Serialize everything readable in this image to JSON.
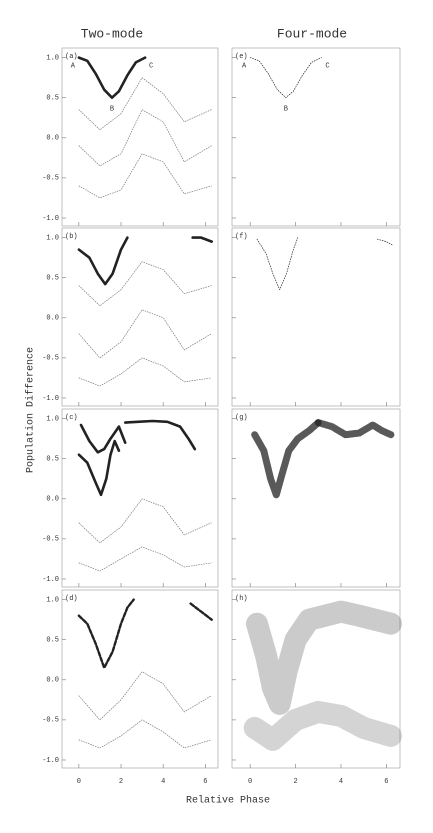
{
  "figure": {
    "column_titles": [
      "Two-mode",
      "Four-mode"
    ],
    "xlabel": "Relative Phase",
    "ylabel": "Population Difference"
  },
  "chart_data": [
    {
      "type": "line",
      "panel_label": "(a)",
      "annotations": [
        "A",
        "B",
        "C"
      ],
      "xlim": [
        -0.8,
        6.6
      ],
      "ylim": [
        -1.1,
        1.12
      ],
      "xticks": [
        0,
        2,
        4,
        6
      ],
      "yticks": [
        {
          "value": -1,
          "label": "-1.0"
        },
        -0.5,
        {
          "value": 0,
          "label": "0.0"
        },
        0.5,
        {
          "value": 1,
          "label": "1.0"
        }
      ],
      "series": [
        {
          "style": "bold",
          "color": "#222222",
          "x": [
            0,
            0.4,
            0.8,
            1.2,
            1.57,
            1.9,
            2.3,
            2.7,
            3.14
          ],
          "values": [
            1.0,
            0.96,
            0.8,
            0.6,
            0.5,
            0.58,
            0.78,
            0.94,
            1.0
          ]
        },
        {
          "style": "thin",
          "color": "#777777",
          "x": [
            0,
            1,
            2,
            3,
            4,
            5,
            6.28
          ],
          "values": [
            0.35,
            0.1,
            0.3,
            0.75,
            0.55,
            0.2,
            0.35
          ]
        },
        {
          "style": "thin",
          "color": "#777777",
          "x": [
            0,
            1,
            2,
            3,
            4,
            5,
            6.28
          ],
          "values": [
            -0.1,
            -0.35,
            -0.2,
            0.35,
            0.2,
            -0.3,
            -0.1
          ]
        },
        {
          "style": "thin",
          "color": "#777777",
          "x": [
            0,
            1,
            2,
            3,
            4,
            5,
            6.28
          ],
          "values": [
            -0.6,
            -0.75,
            -0.65,
            -0.2,
            -0.3,
            -0.7,
            -0.6
          ]
        }
      ]
    },
    {
      "type": "line",
      "panel_label": "(b)",
      "xlim": [
        -0.8,
        6.6
      ],
      "ylim": [
        -1.1,
        1.12
      ],
      "xticks": [
        0,
        2,
        4,
        6
      ],
      "yticks": [
        {
          "value": -1,
          "label": "-1.0"
        },
        -0.5,
        {
          "value": 0,
          "label": "0.0"
        },
        0.5,
        {
          "value": 1,
          "label": "1.0"
        }
      ],
      "series": [
        {
          "style": "bold",
          "color": "#222222",
          "x": [
            0,
            0.5,
            0.9,
            1.25,
            1.6,
            2.0,
            2.3,
            null,
            5.4,
            5.8,
            6.3
          ],
          "values": [
            0.85,
            0.75,
            0.55,
            0.42,
            0.55,
            0.85,
            1.0,
            null,
            1.0,
            1.0,
            0.95
          ]
        },
        {
          "style": "thin",
          "color": "#777777",
          "x": [
            0,
            1,
            2,
            3,
            4,
            5,
            6.28
          ],
          "values": [
            0.4,
            0.15,
            0.35,
            0.7,
            0.6,
            0.3,
            0.4
          ]
        },
        {
          "style": "thin",
          "color": "#777777",
          "x": [
            0,
            1,
            2,
            3,
            4,
            5,
            6.28
          ],
          "values": [
            -0.2,
            -0.5,
            -0.3,
            0.1,
            0.0,
            -0.4,
            -0.2
          ]
        },
        {
          "style": "thin",
          "color": "#777777",
          "x": [
            0,
            1,
            2,
            3,
            4,
            5,
            6.28
          ],
          "values": [
            -0.75,
            -0.85,
            -0.7,
            -0.5,
            -0.6,
            -0.8,
            -0.75
          ]
        }
      ]
    },
    {
      "type": "line",
      "panel_label": "(c)",
      "xlim": [
        -0.8,
        6.6
      ],
      "ylim": [
        -1.1,
        1.12
      ],
      "xticks": [
        0,
        2,
        4,
        6
      ],
      "yticks": [
        {
          "value": -1,
          "label": "-1.0"
        },
        -0.5,
        {
          "value": 0,
          "label": "0.0"
        },
        0.5,
        {
          "value": 1,
          "label": "1.0"
        }
      ],
      "series": [
        {
          "style": "bold",
          "color": "#222222",
          "x": [
            0,
            0.4,
            0.8,
            1.05,
            1.3,
            1.5,
            1.7,
            1.9
          ],
          "values": [
            0.55,
            0.45,
            0.2,
            0.05,
            0.25,
            0.55,
            0.72,
            0.6
          ]
        },
        {
          "style": "bold",
          "color": "#222222",
          "x": [
            0.1,
            0.5,
            0.9,
            1.2,
            1.5,
            1.9,
            2.2
          ],
          "values": [
            0.92,
            0.72,
            0.58,
            0.62,
            0.75,
            0.9,
            0.7
          ]
        },
        {
          "style": "bold",
          "color": "#222222",
          "x": [
            2.2,
            2.8,
            3.5,
            4.2,
            4.8,
            5.2,
            5.5
          ],
          "values": [
            0.95,
            0.96,
            0.97,
            0.96,
            0.9,
            0.75,
            0.62
          ]
        },
        {
          "style": "thin",
          "color": "#777777",
          "x": [
            0,
            1,
            2,
            3,
            4,
            5,
            6.28
          ],
          "values": [
            -0.3,
            -0.55,
            -0.35,
            0.0,
            -0.1,
            -0.45,
            -0.3
          ]
        },
        {
          "style": "thin",
          "color": "#777777",
          "x": [
            0,
            1,
            2,
            3,
            4,
            5,
            6.28
          ],
          "values": [
            -0.8,
            -0.9,
            -0.75,
            -0.6,
            -0.7,
            -0.85,
            -0.8
          ]
        }
      ]
    },
    {
      "type": "line",
      "panel_label": "(d)",
      "xlim": [
        -0.8,
        6.6
      ],
      "ylim": [
        -1.1,
        1.12
      ],
      "xticks": [
        {
          "value": 0,
          "label": "0"
        },
        {
          "value": 2,
          "label": "2"
        },
        {
          "value": 4,
          "label": "4"
        },
        {
          "value": 6,
          "label": "6"
        }
      ],
      "xtick_labels_shown": true,
      "yticks": [
        {
          "value": -1,
          "label": "-1.0"
        },
        -0.5,
        {
          "value": 0,
          "label": "0.0"
        },
        0.5,
        {
          "value": 1,
          "label": "1.0"
        }
      ],
      "series": [
        {
          "style": "dashed",
          "color": "#222222",
          "x": [
            0,
            0.4,
            0.8,
            1.2,
            1.6,
            2.0,
            2.3,
            2.6,
            null,
            5.3,
            5.8,
            6.3
          ],
          "values": [
            0.8,
            0.7,
            0.45,
            0.15,
            0.35,
            0.7,
            0.9,
            1.0,
            null,
            0.95,
            0.85,
            0.75
          ]
        },
        {
          "style": "thin",
          "color": "#777777",
          "x": [
            0,
            1,
            2,
            3,
            4,
            5,
            6.28
          ],
          "values": [
            -0.2,
            -0.5,
            -0.25,
            0.1,
            -0.05,
            -0.4,
            -0.2
          ]
        },
        {
          "style": "thin",
          "color": "#777777",
          "x": [
            0,
            1,
            2,
            3,
            4,
            5,
            6.28
          ],
          "values": [
            -0.75,
            -0.85,
            -0.7,
            -0.5,
            -0.65,
            -0.85,
            -0.75
          ]
        }
      ]
    },
    {
      "type": "line",
      "panel_label": "(e)",
      "annotations": [
        "A",
        "B",
        "C"
      ],
      "xlim": [
        -0.8,
        6.6
      ],
      "ylim": [
        -1.1,
        1.12
      ],
      "xticks": [
        0,
        2,
        4,
        6
      ],
      "yticks": [
        -1,
        -0.5,
        0,
        0.5,
        1
      ],
      "series": [
        {
          "style": "thin",
          "color": "#222222",
          "x": [
            0,
            0.4,
            0.8,
            1.2,
            1.57,
            1.9,
            2.3,
            2.7,
            3.14
          ],
          "values": [
            1.0,
            0.96,
            0.8,
            0.6,
            0.5,
            0.58,
            0.78,
            0.94,
            1.0
          ]
        }
      ]
    },
    {
      "type": "line",
      "panel_label": "(f)",
      "xlim": [
        -0.8,
        6.6
      ],
      "ylim": [
        -1.1,
        1.12
      ],
      "xticks": [
        0,
        2,
        4,
        6
      ],
      "yticks": [
        -1,
        -0.5,
        0,
        0.5,
        1
      ],
      "series": [
        {
          "style": "thin",
          "color": "#222222",
          "x": [
            0.3,
            0.7,
            1.0,
            1.3,
            1.6,
            1.9,
            2.1,
            null,
            5.6,
            6.0,
            6.3
          ],
          "values": [
            0.98,
            0.8,
            0.55,
            0.35,
            0.55,
            0.85,
            1.0,
            null,
            0.98,
            0.95,
            0.9
          ]
        }
      ]
    },
    {
      "type": "line",
      "panel_label": "(g)",
      "xlim": [
        -0.8,
        6.6
      ],
      "ylim": [
        -1.1,
        1.12
      ],
      "xticks": [
        0,
        2,
        4,
        6
      ],
      "yticks": [
        -1,
        -0.5,
        0,
        0.5,
        1
      ],
      "series": [
        {
          "style": "band",
          "color": "#222222",
          "x": [
            0.2,
            0.6,
            0.9,
            1.15,
            1.4,
            1.7,
            2.1,
            2.6,
            3.0
          ],
          "values": [
            0.8,
            0.6,
            0.25,
            0.05,
            0.3,
            0.6,
            0.75,
            0.85,
            0.95
          ]
        },
        {
          "style": "band",
          "color": "#222222",
          "x": [
            3.0,
            3.6,
            4.2,
            4.8,
            5.4,
            5.8,
            6.2
          ],
          "values": [
            0.95,
            0.9,
            0.8,
            0.82,
            0.92,
            0.85,
            0.8
          ]
        }
      ]
    },
    {
      "type": "line",
      "panel_label": "(h)",
      "xlim": [
        -0.8,
        6.6
      ],
      "ylim": [
        -1.1,
        1.12
      ],
      "xticks": [
        {
          "value": 0,
          "label": "0"
        },
        {
          "value": 2,
          "label": "2"
        },
        {
          "value": 4,
          "label": "4"
        },
        {
          "value": 6,
          "label": "6"
        }
      ],
      "xtick_labels_shown": true,
      "yticks": [
        -1,
        -0.5,
        0,
        0.5,
        1
      ],
      "series": [
        {
          "style": "haze",
          "color": "#444444",
          "x": [
            0.3,
            0.7,
            1.0,
            1.3,
            1.6,
            2.0,
            2.6,
            3.3,
            4.0,
            4.8,
            5.5,
            6.2
          ],
          "values": [
            0.7,
            0.3,
            -0.1,
            -0.3,
            0.1,
            0.5,
            0.75,
            0.8,
            0.85,
            0.8,
            0.75,
            0.7
          ]
        },
        {
          "style": "haze",
          "color": "#666666",
          "x": [
            0.2,
            1.0,
            2.0,
            3.0,
            4.0,
            5.0,
            6.2
          ],
          "values": [
            -0.6,
            -0.75,
            -0.5,
            -0.4,
            -0.45,
            -0.6,
            -0.7
          ]
        }
      ]
    }
  ]
}
